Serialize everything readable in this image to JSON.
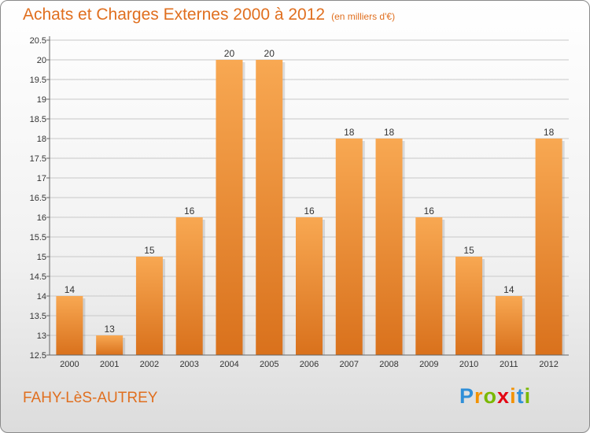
{
  "header": {
    "title": "Achats et Charges Externes 2000 à 2012",
    "subtitle": "(en milliers d'€)"
  },
  "footer": {
    "commune": "FAHY-LèS-AUTREY",
    "logo_text": "Proxiti",
    "logo_colors": [
      "#2f8fd8",
      "#f39200",
      "#7ab800",
      "#e30613",
      "#f39200",
      "#2f8fd8",
      "#7ab800"
    ]
  },
  "colors": {
    "accent": "#e06f1f",
    "bar_light": "#f8a852",
    "bar_dark": "#d9711c",
    "grid": "#c8c8c8"
  },
  "chart_data": {
    "type": "bar",
    "title": "Achats et Charges Externes 2000 à 2012",
    "subtitle": "(en milliers d'€)",
    "categories": [
      "2000",
      "2001",
      "2002",
      "2003",
      "2004",
      "2005",
      "2006",
      "2007",
      "2008",
      "2009",
      "2010",
      "2011",
      "2012"
    ],
    "values": [
      14,
      13,
      15,
      16,
      20,
      20,
      16,
      18,
      18,
      16,
      15,
      14,
      18
    ],
    "data_labels": [
      "14",
      "13",
      "15",
      "16",
      "20",
      "20",
      "16",
      "18",
      "18",
      "16",
      "15",
      "14",
      "18"
    ],
    "ylim": [
      12.5,
      20.5
    ],
    "yticks": [
      12.5,
      13,
      13.5,
      14,
      14.5,
      15,
      15.5,
      16,
      16.5,
      17,
      17.5,
      18,
      18.5,
      19,
      19.5,
      20,
      20.5
    ],
    "ytick_labels": [
      "12.5",
      "13",
      "13.5",
      "14",
      "14.5",
      "15",
      "15.5",
      "16",
      "16.5",
      "17",
      "17.5",
      "18",
      "18.5",
      "19",
      "19.5",
      "20",
      "20.5"
    ],
    "grid": true,
    "xlabel": "",
    "ylabel": ""
  }
}
